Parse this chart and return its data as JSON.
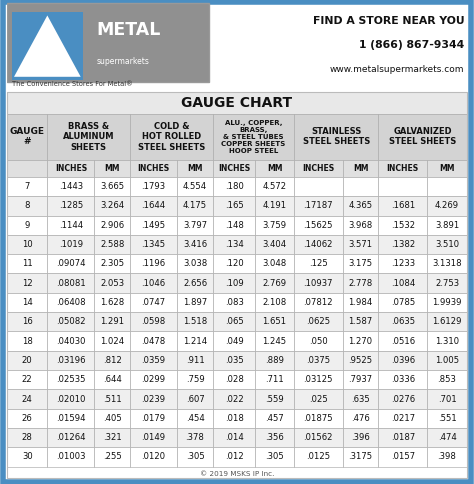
{
  "title": "GAUGE CHART",
  "rows": [
    [
      "7",
      ".1443",
      "3.665",
      ".1793",
      "4.554",
      ".180",
      "4.572",
      "",
      "",
      "",
      ""
    ],
    [
      "8",
      ".1285",
      "3.264",
      ".1644",
      "4.175",
      ".165",
      "4.191",
      ".17187",
      "4.365",
      ".1681",
      "4.269"
    ],
    [
      "9",
      ".1144",
      "2.906",
      ".1495",
      "3.797",
      ".148",
      "3.759",
      ".15625",
      "3.968",
      ".1532",
      "3.891"
    ],
    [
      "10",
      ".1019",
      "2.588",
      ".1345",
      "3.416",
      ".134",
      "3.404",
      ".14062",
      "3.571",
      ".1382",
      "3.510"
    ],
    [
      "11",
      ".09074",
      "2.305",
      ".1196",
      "3.038",
      ".120",
      "3.048",
      ".125",
      "3.175",
      ".1233",
      "3.1318"
    ],
    [
      "12",
      ".08081",
      "2.053",
      ".1046",
      "2.656",
      ".109",
      "2.769",
      ".10937",
      "2.778",
      ".1084",
      "2.753"
    ],
    [
      "14",
      ".06408",
      "1.628",
      ".0747",
      "1.897",
      ".083",
      "2.108",
      ".07812",
      "1.984",
      ".0785",
      "1.9939"
    ],
    [
      "16",
      ".05082",
      "1.291",
      ".0598",
      "1.518",
      ".065",
      "1.651",
      ".0625",
      "1.587",
      ".0635",
      "1.6129"
    ],
    [
      "18",
      ".04030",
      "1.024",
      ".0478",
      "1.214",
      ".049",
      "1.245",
      ".050",
      "1.270",
      ".0516",
      "1.310"
    ],
    [
      "20",
      ".03196",
      ".812",
      ".0359",
      ".911",
      ".035",
      ".889",
      ".0375",
      ".9525",
      ".0396",
      "1.005"
    ],
    [
      "22",
      ".02535",
      ".644",
      ".0299",
      ".759",
      ".028",
      ".711",
      ".03125",
      ".7937",
      ".0336",
      ".853"
    ],
    [
      "24",
      ".02010",
      ".511",
      ".0239",
      ".607",
      ".022",
      ".559",
      ".025",
      ".635",
      ".0276",
      ".701"
    ],
    [
      "26",
      ".01594",
      ".405",
      ".0179",
      ".454",
      ".018",
      ".457",
      ".01875",
      ".476",
      ".0217",
      ".551"
    ],
    [
      "28",
      ".01264",
      ".321",
      ".0149",
      ".378",
      ".014",
      ".356",
      ".01562",
      ".396",
      ".0187",
      ".474"
    ],
    [
      "30",
      ".01003",
      ".255",
      ".0120",
      ".305",
      ".012",
      ".305",
      ".0125",
      ".3175",
      ".0157",
      ".398"
    ]
  ],
  "footer": "© 2019 MSKS IP Inc.",
  "tagline": "The Convenience Stores For Metal®",
  "contact_line1": "FIND A STORE NEAR YOU",
  "contact_line2": "1 (866) 867-9344",
  "contact_line3": "www.metalsupermarkets.com",
  "outer_border_color": "#4a8ec2",
  "inner_border_color": "#aaaaaa",
  "header_bg": "#d3d3d3",
  "subheader_bg": "#e0e0e0",
  "title_bg": "#e8e8e8",
  "row_bg_even": "#ffffff",
  "row_bg_odd": "#efefef",
  "logo_box_bg": "#909090",
  "logo_triangle_bg": "#4a8ec2",
  "cell_border": "#aaaaaa"
}
